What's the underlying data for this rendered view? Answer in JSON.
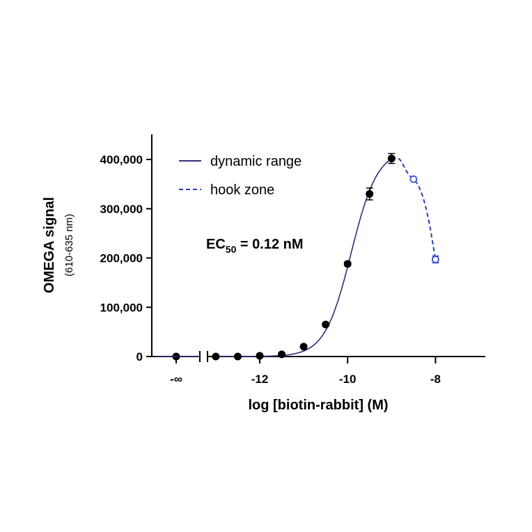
{
  "chart_data": {
    "type": "scatter",
    "xlabel": "log [biotin-rabbit] (M)",
    "ylabel": "OMEGA signal",
    "ylabel_sub": "(610-635 nm)",
    "x_ticks": [
      "-∞",
      "-12",
      "-10",
      "-8"
    ],
    "y_ticks": [
      "0",
      "100,000",
      "200,000",
      "300,000",
      "400,000"
    ],
    "xlim": [
      -13.5,
      -7.0
    ],
    "ylim": [
      0,
      450000
    ],
    "grid": false,
    "legend_position": "top-left",
    "legend": [
      {
        "label": "dynamic range",
        "style": "solid",
        "color": "#2a2f7a"
      },
      {
        "label": "hook zone",
        "style": "dashed",
        "color": "#2b3fb0"
      }
    ],
    "annotation": {
      "prefix": "EC",
      "subscript": "50",
      "suffix": " = 0.12 nM"
    },
    "series": [
      {
        "name": "dynamic range",
        "color": "#000000",
        "x_neg_inf_y": 0,
        "x": [
          -13,
          -12.5,
          -12,
          -11.5,
          -11,
          -10.5,
          -10,
          -9.5,
          -9
        ],
        "y": [
          0,
          0,
          1500,
          4500,
          20000,
          65000,
          188000,
          330000,
          402000
        ],
        "err": [
          0,
          0,
          0,
          0,
          2000,
          3000,
          4000,
          12000,
          10000
        ]
      },
      {
        "name": "hook zone",
        "color": "#3a4fcf",
        "hollow": true,
        "x": [
          -8.5,
          -8
        ],
        "y": [
          360000,
          197000
        ],
        "err": [
          0,
          7000
        ]
      }
    ],
    "fit": {
      "type": "sigmoid",
      "bottom": 0,
      "top": 420000,
      "logEC50": -9.92,
      "hill": 1.45,
      "x_start": -13,
      "x_end": -9,
      "color": "#2a2f7a"
    },
    "hook_curve": {
      "x": [
        -9,
        -8.5,
        -8
      ],
      "y": [
        402000,
        360000,
        197000
      ],
      "color": "#2b3fb0"
    }
  }
}
